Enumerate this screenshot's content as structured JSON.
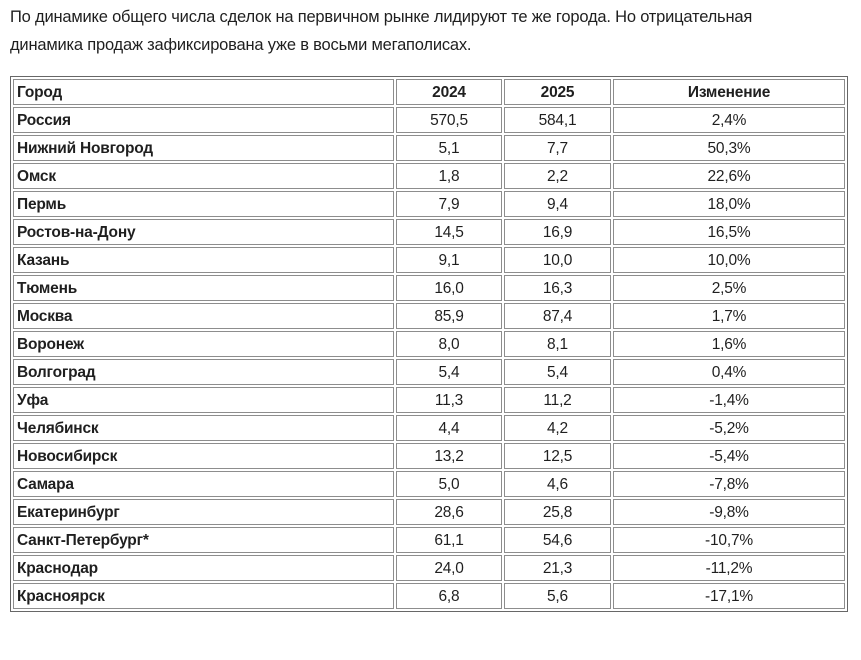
{
  "intro": {
    "line1": "По динамике общего числа сделок на первичном рынке лидируют те же города. Но отрицательная",
    "line2": "динамика продаж зафиксирована уже в восьми мегаполисах."
  },
  "chart_data": {
    "type": "table",
    "columns": [
      "Город",
      "2024",
      "2025",
      "Изменение"
    ],
    "rows": [
      [
        "Россия",
        "570,5",
        "584,1",
        "2,4%"
      ],
      [
        "Нижний Новгород",
        "5,1",
        "7,7",
        "50,3%"
      ],
      [
        "Омск",
        "1,8",
        "2,2",
        "22,6%"
      ],
      [
        "Пермь",
        "7,9",
        "9,4",
        "18,0%"
      ],
      [
        "Ростов-на-Дону",
        "14,5",
        "16,9",
        "16,5%"
      ],
      [
        "Казань",
        "9,1",
        "10,0",
        "10,0%"
      ],
      [
        "Тюмень",
        "16,0",
        "16,3",
        "2,5%"
      ],
      [
        "Москва",
        "85,9",
        "87,4",
        "1,7%"
      ],
      [
        "Воронеж",
        "8,0",
        "8,1",
        "1,6%"
      ],
      [
        "Волгоград",
        "5,4",
        "5,4",
        "0,4%"
      ],
      [
        "Уфа",
        "11,3",
        "11,2",
        "-1,4%"
      ],
      [
        "Челябинск",
        "4,4",
        "4,2",
        "-5,2%"
      ],
      [
        "Новосибирск",
        "13,2",
        "12,5",
        "-5,4%"
      ],
      [
        "Самара",
        "5,0",
        "4,6",
        "-7,8%"
      ],
      [
        "Екатеринбург",
        "28,6",
        "25,8",
        "-9,8%"
      ],
      [
        "Санкт-Петербург*",
        "61,1",
        "54,6",
        "-10,7%"
      ],
      [
        "Краснодар",
        "24,0",
        "21,3",
        "-11,2%"
      ],
      [
        "Красноярск",
        "6,8",
        "5,6",
        "-17,1%"
      ]
    ]
  },
  "colors": {
    "background": "#ffffff",
    "text": "#1f1f1f",
    "border_outer": "#676767",
    "border_cell": "#8d8d8d"
  }
}
